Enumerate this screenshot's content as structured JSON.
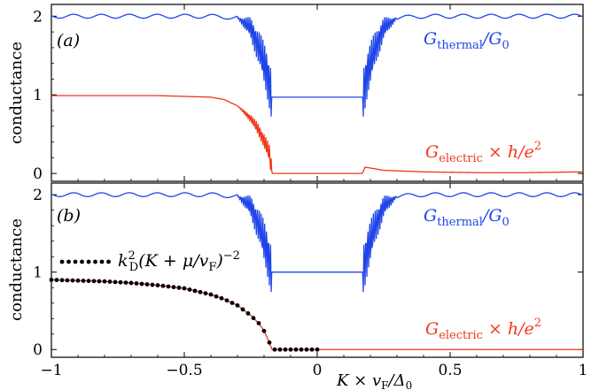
{
  "chart_data": [
    {
      "type": "line",
      "panel_label": "(a)",
      "ylabel": "conductance",
      "xlim": [
        -1,
        1
      ],
      "ylim": [
        -0.1,
        2.15
      ],
      "yticks": [
        0,
        1,
        2
      ],
      "xticks": [
        -1,
        -0.5,
        0,
        0.5,
        1
      ],
      "ytick_labels": [
        "0",
        "1",
        "2"
      ],
      "series": [
        {
          "name": "G_thermal/G_0",
          "label": "Gthermal/G0",
          "color": "#1f45e8",
          "x": [
            -1.0,
            -0.8,
            -0.6,
            -0.4,
            -0.3,
            -0.25,
            -0.22,
            -0.2,
            -0.19,
            -0.18,
            -0.17,
            0.0,
            0.17,
            0.18,
            0.19,
            0.2,
            0.22,
            0.25,
            0.3,
            0.4,
            0.6,
            0.8,
            1.0
          ],
          "y": [
            2.0,
            2.0,
            2.0,
            2.0,
            1.98,
            1.85,
            1.6,
            1.4,
            1.3,
            1.15,
            0.97,
            0.97,
            0.97,
            1.15,
            1.3,
            1.4,
            1.6,
            1.85,
            1.98,
            2.0,
            2.0,
            2.0,
            2.0
          ]
        },
        {
          "name": "G_electric x h/e^2",
          "label": "Gelectric × h/e2",
          "color": "#f2361b",
          "x": [
            -1.0,
            -0.8,
            -0.6,
            -0.4,
            -0.35,
            -0.3,
            -0.25,
            -0.22,
            -0.2,
            -0.18,
            -0.17,
            0.0,
            0.17,
            0.18,
            0.25,
            0.4,
            0.6,
            0.8,
            1.0
          ],
          "y": [
            0.99,
            0.99,
            0.99,
            0.97,
            0.94,
            0.86,
            0.7,
            0.55,
            0.42,
            0.25,
            0.0,
            0.0,
            0.0,
            0.08,
            0.04,
            0.02,
            0.01,
            0.01,
            0.02
          ]
        }
      ]
    },
    {
      "type": "line",
      "panel_label": "(b)",
      "ylabel": "conductance",
      "xlabel": "K × vF/Δ0",
      "xlim": [
        -1,
        1
      ],
      "ylim": [
        -0.1,
        2.15
      ],
      "yticks": [
        0,
        1,
        2
      ],
      "xticks": [
        -1,
        -0.5,
        0,
        0.5,
        1
      ],
      "ytick_labels": [
        "0",
        "1",
        "2"
      ],
      "xtick_labels": [
        "−1",
        "−0.5",
        "0",
        "0.5",
        "1"
      ],
      "series": [
        {
          "name": "G_thermal/G_0",
          "label": "Gthermal/G0",
          "color": "#1f45e8",
          "x": [
            -1.0,
            -0.8,
            -0.6,
            -0.4,
            -0.3,
            -0.25,
            -0.22,
            -0.2,
            -0.19,
            -0.18,
            -0.17,
            0.0,
            0.17,
            0.18,
            0.19,
            0.2,
            0.22,
            0.25,
            0.3,
            0.4,
            0.6,
            0.8,
            1.0
          ],
          "y": [
            2.0,
            2.0,
            2.0,
            2.0,
            1.98,
            1.85,
            1.6,
            1.4,
            1.3,
            1.15,
            1.0,
            1.0,
            1.0,
            1.15,
            1.3,
            1.4,
            1.6,
            1.85,
            1.98,
            2.0,
            2.0,
            2.0,
            2.0
          ]
        },
        {
          "name": "G_electric x h/e^2",
          "label": "Gelectric × h/e2",
          "color": "#f2361b",
          "x": [
            -1.0,
            -0.9,
            -0.8,
            -0.7,
            -0.6,
            -0.5,
            -0.4,
            -0.35,
            -0.3,
            -0.25,
            -0.22,
            -0.2,
            -0.18,
            -0.17,
            0.0,
            0.5,
            1.0
          ],
          "y": [
            0.9,
            0.89,
            0.88,
            0.86,
            0.83,
            0.79,
            0.71,
            0.65,
            0.57,
            0.44,
            0.34,
            0.24,
            0.09,
            0.0,
            0.0,
            0.0,
            0.0
          ]
        },
        {
          "name": "k_D^2 (K + mu/v_F)^-2",
          "label": "k2D(K + μ/vF)−2",
          "color": "#000000",
          "style": "dots",
          "x": [
            -1.0,
            -0.9,
            -0.8,
            -0.7,
            -0.6,
            -0.5,
            -0.4,
            -0.35,
            -0.3,
            -0.25,
            -0.22,
            -0.2,
            -0.18,
            -0.17,
            -0.1,
            -0.05,
            0.0
          ],
          "y": [
            0.9,
            0.89,
            0.88,
            0.86,
            0.83,
            0.79,
            0.71,
            0.65,
            0.57,
            0.44,
            0.34,
            0.24,
            0.09,
            0.0,
            0.0,
            0.0,
            0.0
          ]
        }
      ]
    }
  ],
  "labels": {
    "panel_a": "(a)",
    "panel_b": "(b)",
    "ylabel": "conductance",
    "xlabel_main": "K × v",
    "xlabel_sub": "F",
    "xlabel_tail": "/Δ",
    "xlabel_sub2": "0",
    "thermal_main": "G",
    "thermal_sub": "thermal",
    "thermal_mid": "/G",
    "thermal_sub2": "0",
    "electric_main": "G",
    "electric_sub": "electric",
    "electric_mid": " × h/e",
    "electric_sup": "2",
    "dots_main": "k",
    "dots_sup": "2",
    "dots_sub": "D",
    "dots_mid": "(K + μ/v",
    "dots_sub2": "F",
    "dots_tail": ")",
    "dots_sup2": "−2"
  }
}
